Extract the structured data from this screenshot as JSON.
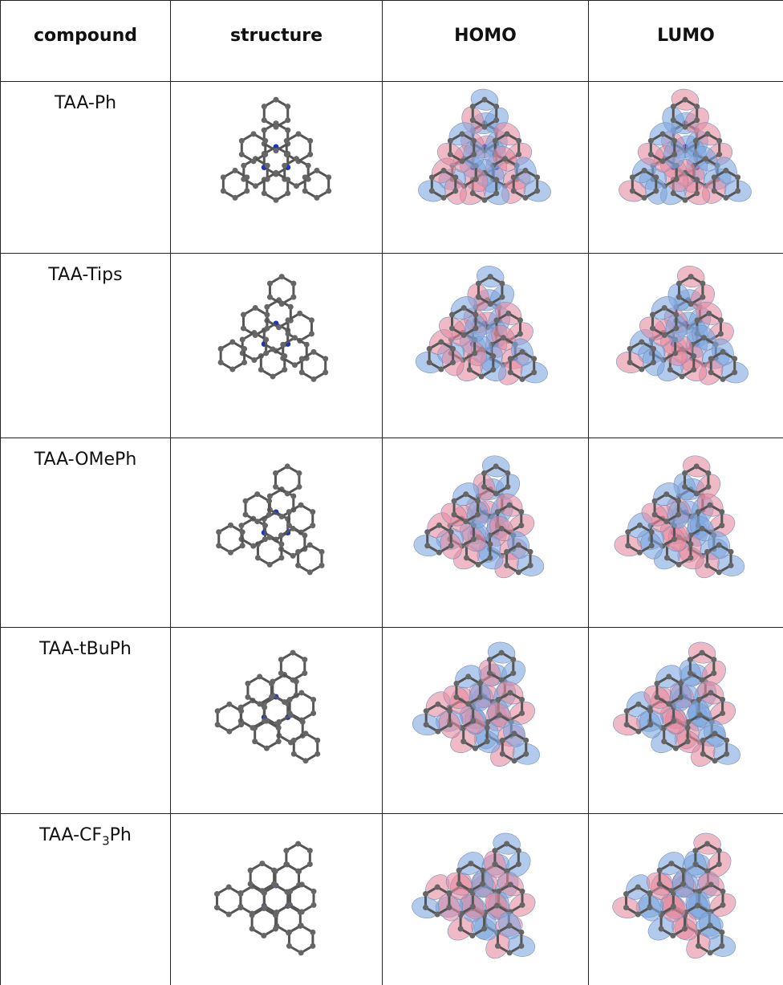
{
  "table": {
    "header": [
      "compound",
      "structure",
      "HOMO",
      "LUMO"
    ],
    "rows": [
      [
        "TAA-Ph"
      ],
      [
        "TAA-Tips"
      ],
      [
        "TAA-OMePh"
      ],
      [
        "TAA-tBuPh"
      ],
      [
        [
          "TAA-CF",
          "3",
          "Ph"
        ]
      ]
    ]
  }
}
